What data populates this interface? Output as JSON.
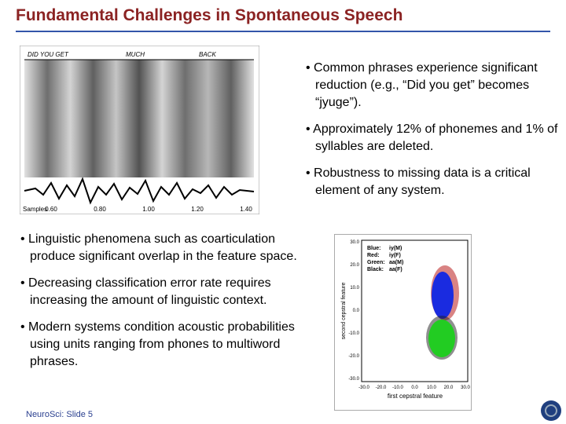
{
  "title": "Fundamental Challenges in Spontaneous Speech",
  "spectrogram": {
    "words": [
      "DID YOU GET",
      "MUCH",
      "BACK"
    ],
    "samples_label": "Samples",
    "time_ticks": [
      "0.60",
      "0.80",
      "1.00",
      "1.20",
      "1.40"
    ]
  },
  "bullets_right": [
    "Common phrases experience significant reduction (e.g., “Did you get” becomes “jyuge”).",
    "Approximately 12% of phonemes and 1% of syllables are deleted.",
    "Robustness to missing data is a critical element of any system."
  ],
  "bullets_left": [
    "Linguistic phenomena such as coarticulation produce significant overlap in the feature space.",
    "Decreasing classification error rate requires increasing the amount of linguistic context.",
    "Modern systems condition acoustic probabilities using units ranging from phones to multiword phrases."
  ],
  "scatter": {
    "x_label": "first cepstral feature",
    "y_label": "second cepstral feature",
    "x_ticks": [
      "-30.0",
      "-20.0",
      "-10.0",
      "0.0",
      "10.0",
      "20.0",
      "30.0"
    ],
    "y_ticks": [
      "30.0",
      "20.0",
      "10.0",
      "0.0",
      "-10.0",
      "-20.0",
      "-30.0"
    ],
    "legend": [
      {
        "color": "Blue:",
        "label": "iy(M)"
      },
      {
        "color": "Red:",
        "label": "iy(F)"
      },
      {
        "color": "Green:",
        "label": "aa(M)"
      },
      {
        "color": "Black:",
        "label": "aa(F)"
      }
    ]
  },
  "footer": "NeuroSci: Slide 5"
}
